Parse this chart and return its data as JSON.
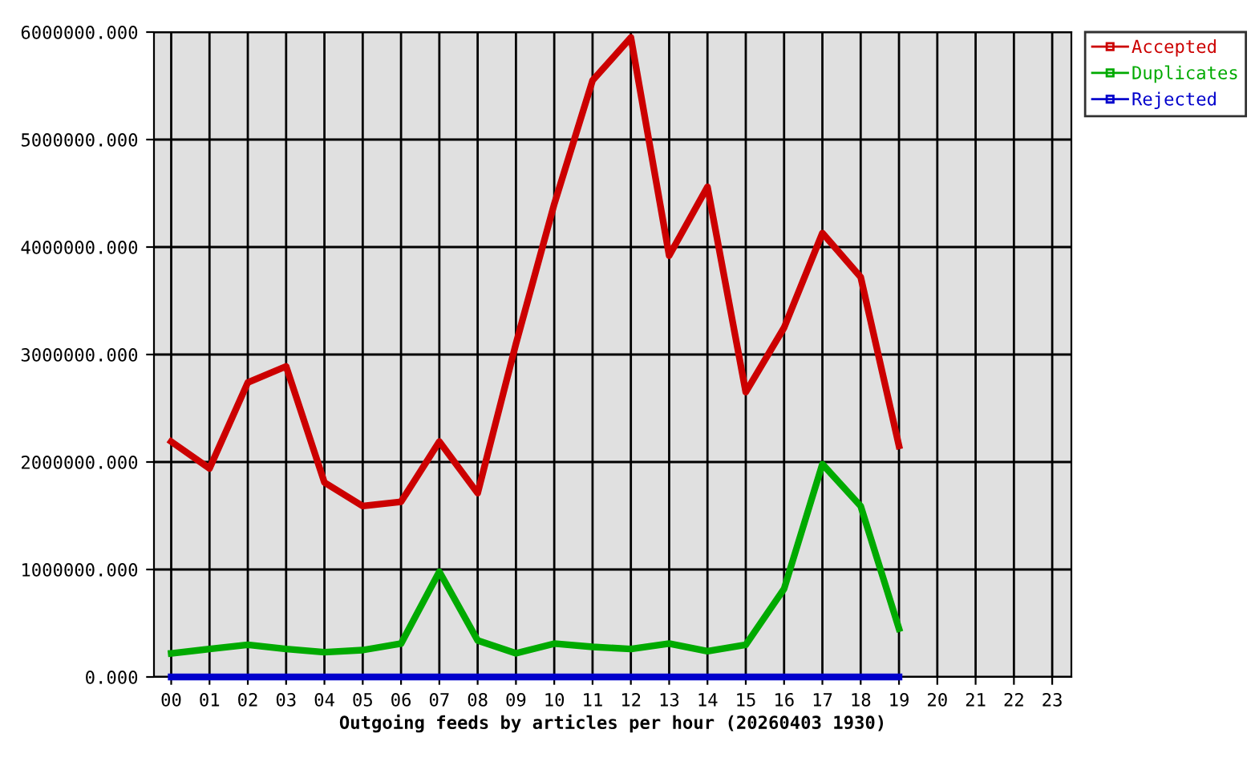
{
  "chart_data": {
    "type": "line",
    "xlabel": "Outgoing feeds by articles per hour (20260403 1930)",
    "categories": [
      "00",
      "01",
      "02",
      "03",
      "04",
      "05",
      "06",
      "07",
      "08",
      "09",
      "10",
      "11",
      "12",
      "13",
      "14",
      "15",
      "16",
      "17",
      "18",
      "19",
      "20",
      "21",
      "22",
      "23"
    ],
    "series": [
      {
        "name": "Accepted",
        "color": "#cc0000",
        "values": [
          2190000,
          1940000,
          2740000,
          2890000,
          1810000,
          1590000,
          1630000,
          2190000,
          1710000,
          3100000,
          4400000,
          5550000,
          5950000,
          3920000,
          4560000,
          2650000,
          3250000,
          4130000,
          3720000,
          2150000,
          null,
          null,
          null,
          null
        ]
      },
      {
        "name": "Duplicates",
        "color": "#00aa00",
        "values": [
          220000,
          260000,
          300000,
          260000,
          230000,
          250000,
          310000,
          980000,
          340000,
          220000,
          310000,
          280000,
          260000,
          310000,
          240000,
          300000,
          820000,
          1980000,
          1590000,
          450000,
          null,
          null,
          null,
          null
        ]
      },
      {
        "name": "Rejected",
        "color": "#0000cc",
        "values": [
          0,
          0,
          0,
          0,
          0,
          0,
          0,
          0,
          0,
          0,
          0,
          0,
          0,
          0,
          0,
          0,
          0,
          0,
          0,
          0,
          null,
          null,
          null,
          null
        ]
      }
    ],
    "ylim": [
      0,
      6000000
    ],
    "yticks": [
      {
        "value": 0,
        "label": "0.000"
      },
      {
        "value": 1000000,
        "label": "1000000.000"
      },
      {
        "value": 2000000,
        "label": "2000000.000"
      },
      {
        "value": 3000000,
        "label": "3000000.000"
      },
      {
        "value": 4000000,
        "label": "4000000.000"
      },
      {
        "value": 5000000,
        "label": "5000000.000"
      },
      {
        "value": 6000000,
        "label": "6000000.000"
      }
    ],
    "grid": true,
    "legend": "top right",
    "line_style": "solid"
  }
}
